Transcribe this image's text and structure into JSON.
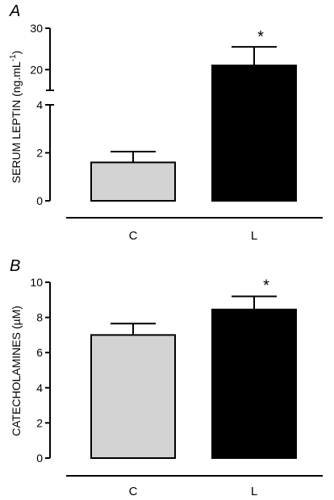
{
  "chart_data": [
    {
      "panel": "A",
      "type": "bar",
      "ylabel": "SERUM LEPTIN (ng.mL",
      "ylabel_superscript": "-1",
      "ylabel_suffix": ")",
      "categories": [
        "C",
        "L"
      ],
      "values": [
        1.6,
        21.0
      ],
      "errors": [
        0.45,
        4.5
      ],
      "significance": [
        "",
        "*"
      ],
      "bar_colors": [
        "#d3d3d3",
        "#000000"
      ],
      "axis_break": true,
      "ylim_lower": [
        0,
        4
      ],
      "ylim_upper": [
        15,
        30
      ],
      "lower_ticks": [
        "0",
        "2",
        "4"
      ],
      "upper_ticks": [
        "20",
        "30"
      ]
    },
    {
      "panel": "B",
      "type": "bar",
      "ylabel": "CATECHOLAMINES (µM)",
      "categories": [
        "C",
        "L"
      ],
      "values": [
        7.0,
        8.45
      ],
      "errors": [
        0.65,
        0.75
      ],
      "significance": [
        "",
        "*"
      ],
      "bar_colors": [
        "#d3d3d3",
        "#000000"
      ],
      "ylim": [
        0,
        10
      ],
      "ticks": [
        "0",
        "2",
        "4",
        "6",
        "8",
        "10"
      ]
    }
  ]
}
